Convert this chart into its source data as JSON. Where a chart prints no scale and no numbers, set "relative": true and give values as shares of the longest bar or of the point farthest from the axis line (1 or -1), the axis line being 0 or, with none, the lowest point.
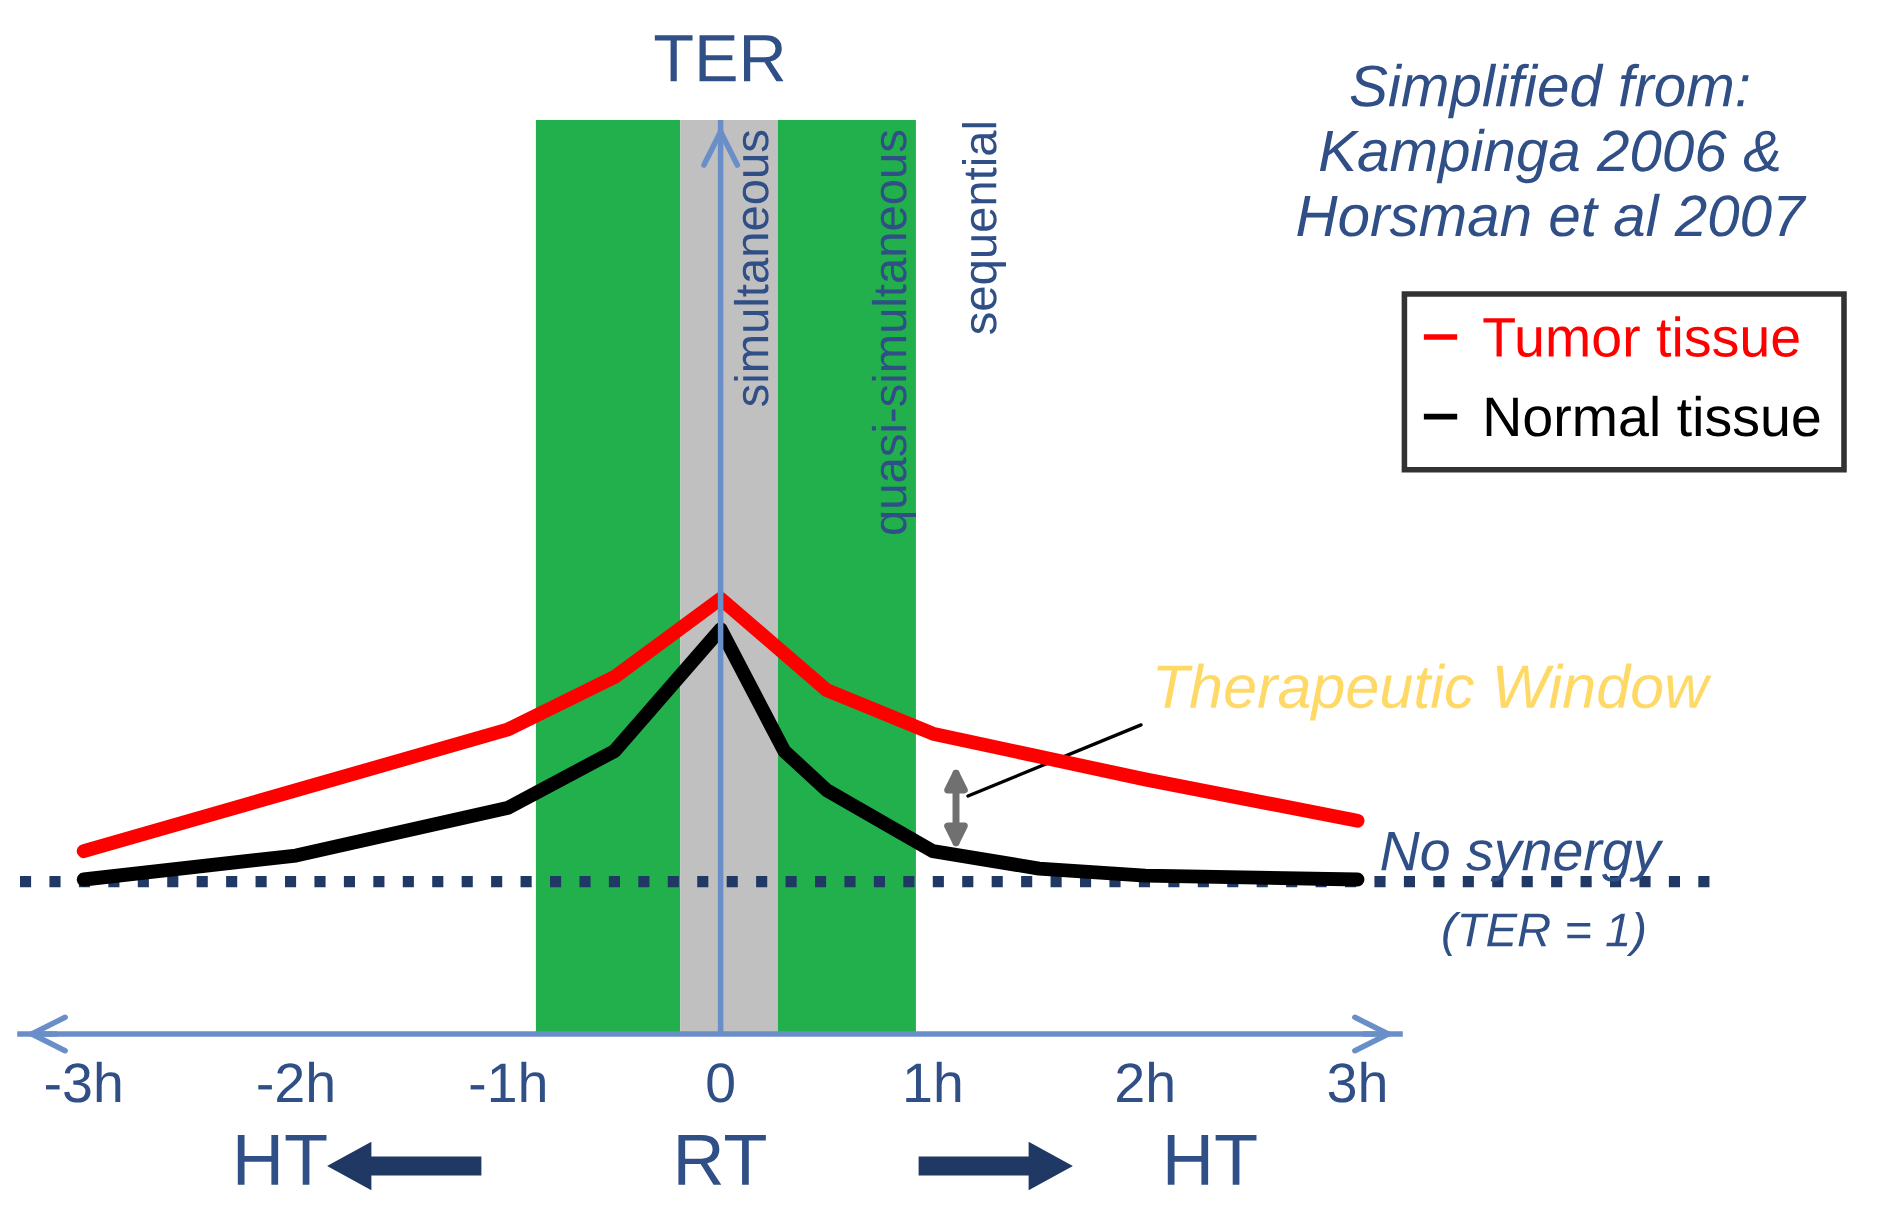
{
  "chart_data": {
    "type": "line",
    "relative": true,
    "xlim": [
      -3.3,
      3.2
    ],
    "xticks": [
      {
        "value": -3,
        "label": "-3h"
      },
      {
        "value": -2,
        "label": "-2h"
      },
      {
        "value": -1,
        "label": "-1h"
      },
      0,
      {
        "value": 1,
        "label": "1h"
      },
      {
        "value": 2,
        "label": "2h"
      },
      {
        "value": 3,
        "label": "3h"
      }
    ],
    "tick_labels": "x",
    "legend": "top right",
    "grid": false,
    "marker": "none",
    "line_style": "solid",
    "series": [
      {
        "name": "Tumor tissue",
        "color": "#ff0000",
        "x": [
          -3,
          -2,
          -1,
          -0.5,
          0,
          0.5,
          1,
          2,
          3
        ],
        "values": [
          0.42,
          0.56,
          0.7,
          0.82,
          1.0,
          0.79,
          0.69,
          0.585,
          0.49
        ]
      },
      {
        "name": "Normal tissue",
        "color": "#000000",
        "x": [
          -3,
          -2,
          -1,
          -0.5,
          0,
          0.3,
          0.5,
          1,
          1.5,
          2,
          3
        ],
        "values": [
          0.355,
          0.41,
          0.52,
          0.65,
          0.93,
          0.65,
          0.56,
          0.42,
          0.38,
          0.364,
          0.355
        ]
      }
    ],
    "bands": [
      {
        "axis": "x",
        "from": -0.87,
        "to": -0.19,
        "label": null,
        "color": "#21b04b"
      },
      {
        "axis": "x",
        "from": -0.19,
        "to": 0.27,
        "label": "simultaneous",
        "color": "#c0c0c0"
      },
      {
        "axis": "x",
        "from": 0.27,
        "to": 0.92,
        "label": "quasi-simultaneous",
        "color": "#21b04b"
      }
    ],
    "ref_lines": [
      {
        "axis": "y",
        "value": 0.35,
        "label": "No synergy",
        "color": "#1f3864",
        "line_style": "dotted"
      },
      {
        "axis": "x",
        "value": 0,
        "label": null,
        "color": "#6a8fc8",
        "line_style": "solid"
      }
    ],
    "annotations": [
      "sequential",
      "(TER = 1)",
      "Simplified from: Kampinga 2006 & Horsman et al 2007",
      "Therapeutic Window",
      "HT",
      "RT",
      "HT",
      "TER"
    ]
  }
}
